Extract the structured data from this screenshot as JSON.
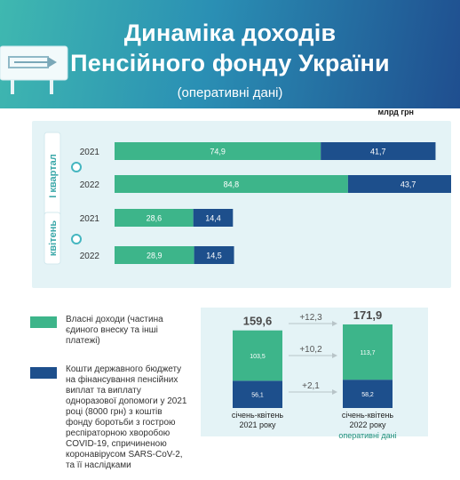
{
  "header": {
    "title_line1": "Динаміка доходів",
    "title_line2": "Пенсійного фонду України",
    "subtitle": "(оперативні дані)"
  },
  "unit_label": "млрд грн",
  "colors": {
    "own_income": "#3db58a",
    "state_budget": "#1d4f8c",
    "panel": "#e4f3f6",
    "accent": "#45b6c0"
  },
  "legend": [
    {
      "label": "Власні доходи (частина єдиного внеску та інші платежі)"
    },
    {
      "label": "Кошти державного бюджету на фінансування пенсійних виплат та виплату одноразової допомоги у 2021 році (8000 грн) з коштів фонду боротьби з гострою респіраторною хворобою COVID-19, спричиненою коронавірусом SARS-CoV-2, та її наслідками"
    }
  ],
  "chart_data": [
    {
      "type": "bar",
      "orientation": "horizontal",
      "stacked": true,
      "groups": [
        {
          "label": "І квартал",
          "categories": [
            "2021",
            "2022"
          ]
        },
        {
          "label": "квітень",
          "categories": [
            "2021",
            "2022"
          ]
        }
      ],
      "categories": [
        "2021",
        "2022",
        "2021",
        "2022"
      ],
      "series": [
        {
          "values": [
            74.9,
            84.8,
            28.6,
            28.9
          ],
          "labels": [
            "74,9",
            "84,8",
            "28,6",
            "28,9"
          ]
        },
        {
          "values": [
            41.7,
            43.7,
            14.4,
            14.5
          ],
          "labels": [
            "41,7",
            "43,7",
            "14,4",
            "14,5"
          ]
        }
      ],
      "xlim": [
        0,
        130
      ]
    },
    {
      "type": "bar",
      "orientation": "vertical",
      "stacked": true,
      "categories": [
        "січень-квітень 2021 року",
        "січень-квітень 2022 року"
      ],
      "totals": [
        "159,6",
        "171,9"
      ],
      "series": [
        {
          "values": [
            103.5,
            113.7
          ],
          "labels": [
            "103,5",
            "113,7"
          ]
        },
        {
          "values": [
            56.1,
            58.2
          ],
          "labels": [
            "56,1",
            "58,2"
          ]
        }
      ],
      "differences": [
        "+12,3",
        "+10,2",
        "+2,1"
      ],
      "note": "оперативні дані",
      "ylim": [
        0,
        172
      ]
    }
  ]
}
